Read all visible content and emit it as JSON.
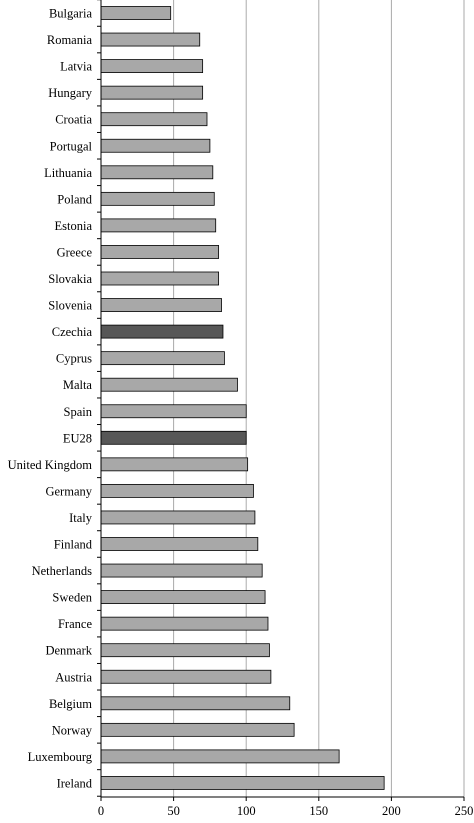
{
  "chart_data": {
    "type": "bar",
    "orientation": "horizontal",
    "categories": [
      "Bulgaria",
      "Romania",
      "Latvia",
      "Hungary",
      "Croatia",
      "Portugal",
      "Lithuania",
      "Poland",
      "Estonia",
      "Greece",
      "Slovakia",
      "Slovenia",
      "Czechia",
      "Cyprus",
      "Malta",
      "Spain",
      "EU28",
      "United Kingdom",
      "Germany",
      "Italy",
      "Finland",
      "Netherlands",
      "Sweden",
      "France",
      "Denmark",
      "Austria",
      "Belgium",
      "Norway",
      "Luxembourg",
      "Ireland"
    ],
    "values": [
      48,
      68,
      70,
      70,
      73,
      75,
      77,
      78,
      79,
      81,
      81,
      83,
      84,
      85,
      94,
      100,
      100,
      101,
      105,
      106,
      108,
      111,
      113,
      115,
      116,
      117,
      130,
      133,
      164,
      195
    ],
    "highlighted": [
      "Czechia",
      "EU28"
    ],
    "xlim": [
      0,
      250
    ],
    "xticks": [
      0,
      50,
      100,
      150,
      200,
      250
    ],
    "grid": "vertical",
    "legend": "none",
    "title": "",
    "xlabel": "",
    "ylabel": "",
    "colors": {
      "bar": "#a8a8a8",
      "bar_highlight": "#575757",
      "bar_edge": "#000000",
      "grid": "#aaaaaa",
      "axis": "#000000"
    }
  }
}
